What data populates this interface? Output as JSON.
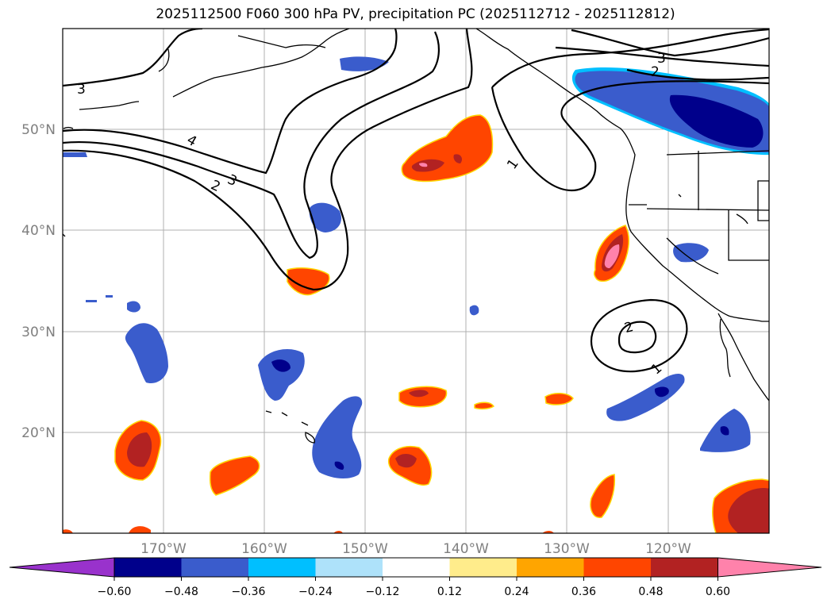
{
  "title": "2025112500 F060 300 hPa PV, precipitation PC (2025112712 - 2025112812)",
  "map": {
    "lat_ticks": [
      "50°N",
      "40°N",
      "30°N",
      "20°N"
    ],
    "lon_ticks": [
      "170°W",
      "160°W",
      "150°W",
      "140°W",
      "130°W",
      "120°W"
    ],
    "pv_contour_labels": [
      "3",
      "4",
      "3",
      "2",
      "1",
      "3",
      "2",
      "2",
      "1"
    ]
  },
  "colorbar": {
    "colors": [
      "#9932cc",
      "#00008b",
      "#3a5ccc",
      "#00bfff",
      "#aee2fa",
      "#ffffff",
      "#ffec8b",
      "#ffa500",
      "#ff4500",
      "#b22222",
      "#ff82ab"
    ],
    "ticks": [
      "−0.60",
      "−0.48",
      "−0.36",
      "−0.24",
      "−0.12",
      "0.12",
      "0.24",
      "0.36",
      "0.48",
      "0.60"
    ]
  },
  "legend_colors": {
    "neg_weak": "#00bfff",
    "neg_mid": "#3a5ccc",
    "neg_strong": "#00008b",
    "pos_weak": "#ffd700",
    "pos_mid": "#ff4500",
    "pos_strong": "#b22222",
    "pos_max": "#ff82ab"
  }
}
